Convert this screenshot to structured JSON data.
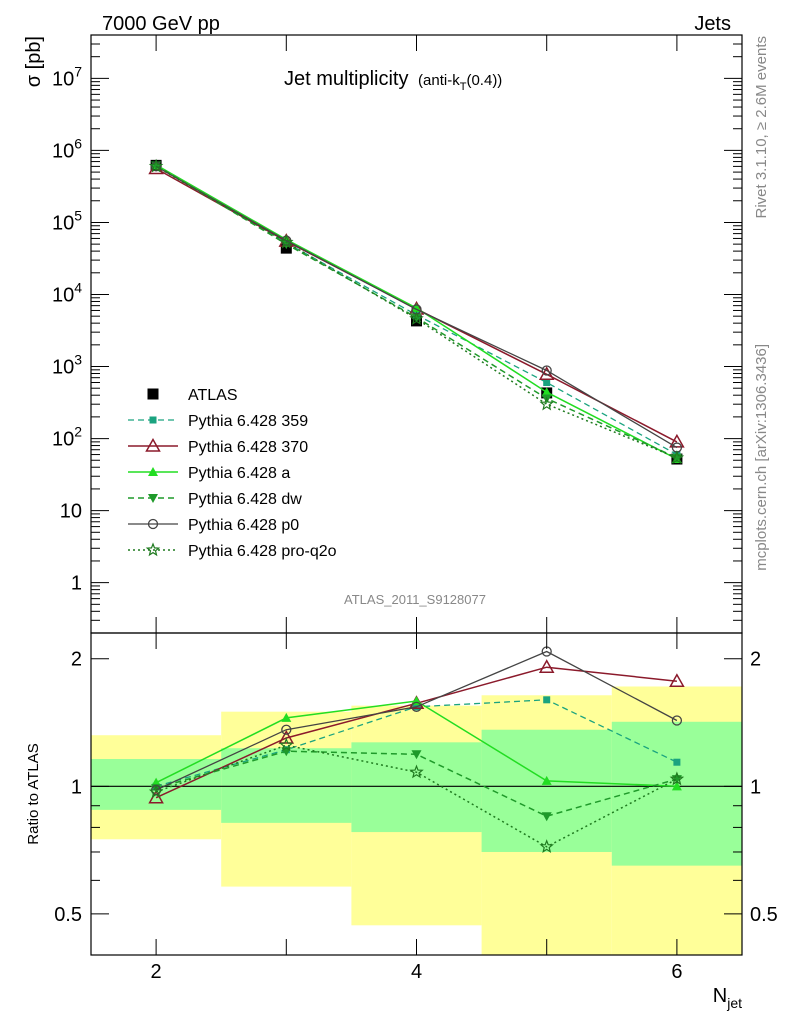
{
  "header": {
    "left": "7000 GeV pp",
    "right": "Jets",
    "title_main": "Jet multiplicity",
    "title_sub_pre": "(anti-k",
    "title_sub_idx": "T",
    "title_sub_post": "(0.4))",
    "side_top": "Rivet 3.1.10, ≥ 2.6M events",
    "side_bottom": "mcplots.cern.ch [arXiv:1306.3436]",
    "watermark": "ATLAS_2011_S9128077"
  },
  "colors": {
    "atlas": "#000000",
    "p359": "#1aa37f",
    "p370": "#8b1a2b",
    "pa": "#22dd22",
    "pdw": "#1f9a2a",
    "pp0": "#444444",
    "pq2o": "#1f7a1f",
    "band_green": "#99ff99",
    "band_yellow": "#ffff99"
  },
  "chart_data": [
    {
      "type": "line",
      "ylabel": "σ [pb]",
      "yscale": "log",
      "ylim": [
        0.2,
        40000000
      ],
      "xlim": [
        1.5,
        6.5
      ],
      "y_ticks": [
        {
          "v": 1,
          "base": "1",
          "exp": ""
        },
        {
          "v": 10,
          "base": "10",
          "exp": ""
        },
        {
          "v": 100,
          "base": "10",
          "exp": "2"
        },
        {
          "v": 1000,
          "base": "10",
          "exp": "3"
        },
        {
          "v": 10000,
          "base": "10",
          "exp": "4"
        },
        {
          "v": 100000,
          "base": "10",
          "exp": "5"
        },
        {
          "v": 1000000,
          "base": "10",
          "exp": "6"
        },
        {
          "v": 10000000,
          "base": "10",
          "exp": "7"
        }
      ],
      "legend_position": "lower-left",
      "x": [
        2,
        3,
        4,
        5,
        6
      ],
      "series": [
        {
          "key": "atlas",
          "name": "ATLAS",
          "values": [
            620000,
            44000,
            4300,
            430,
            52
          ]
        },
        {
          "key": "p359",
          "name": "Pythia 6.428 359",
          "values": [
            620000,
            52000,
            5200,
            600,
            60
          ]
        },
        {
          "key": "p370",
          "name": "Pythia 6.428 370",
          "values": [
            560000,
            55000,
            6300,
            780,
            90
          ]
        },
        {
          "key": "pa",
          "name": "Pythia 6.428 a",
          "values": [
            630000,
            58000,
            6500,
            440,
            52
          ]
        },
        {
          "key": "pdw",
          "name": "Pythia 6.428 dw",
          "values": [
            620000,
            50000,
            4800,
            360,
            54
          ]
        },
        {
          "key": "pp0",
          "name": "Pythia 6.428 p0",
          "values": [
            600000,
            56000,
            6200,
            880,
            75
          ]
        },
        {
          "key": "pq2o",
          "name": "Pythia 6.428 pro-q2o",
          "values": [
            600000,
            53000,
            4600,
            300,
            54
          ]
        }
      ]
    },
    {
      "type": "line",
      "ylabel": "Ratio to ATLAS",
      "xlabel": "N",
      "xlabel_sub": "jet",
      "yscale": "log",
      "ylim": [
        0.4,
        2.3
      ],
      "y_ticks": [
        {
          "v": 0.5,
          "label": "0.5"
        },
        {
          "v": 1,
          "label": "1"
        },
        {
          "v": 2,
          "label": "2"
        }
      ],
      "x_ticks": [
        2,
        4,
        6
      ],
      "x": [
        2,
        3,
        4,
        5,
        6
      ],
      "bands": {
        "edges": [
          1.5,
          2.5,
          3.5,
          4.5,
          5.5,
          6.5
        ],
        "inner": [
          [
            0.88,
            1.16
          ],
          [
            0.82,
            1.23
          ],
          [
            0.78,
            1.27
          ],
          [
            0.7,
            1.36
          ],
          [
            0.65,
            1.42
          ]
        ],
        "outer": [
          [
            0.75,
            1.32
          ],
          [
            0.58,
            1.5
          ],
          [
            0.47,
            1.55
          ],
          [
            0.35,
            1.64
          ],
          [
            0.35,
            1.72
          ]
        ]
      },
      "series": [
        {
          "key": "p359",
          "values": [
            1.0,
            1.22,
            1.54,
            1.6,
            1.14
          ]
        },
        {
          "key": "p370",
          "values": [
            0.94,
            1.3,
            1.57,
            1.91,
            1.77
          ]
        },
        {
          "key": "pa",
          "values": [
            1.02,
            1.45,
            1.59,
            1.03,
            1.0
          ]
        },
        {
          "key": "pdw",
          "values": [
            0.99,
            1.21,
            1.19,
            0.85,
            1.04
          ]
        },
        {
          "key": "pp0",
          "values": [
            0.98,
            1.36,
            1.54,
            2.08,
            1.43
          ]
        },
        {
          "key": "pq2o",
          "values": [
            0.97,
            1.25,
            1.08,
            0.72,
            1.04
          ]
        }
      ]
    }
  ]
}
